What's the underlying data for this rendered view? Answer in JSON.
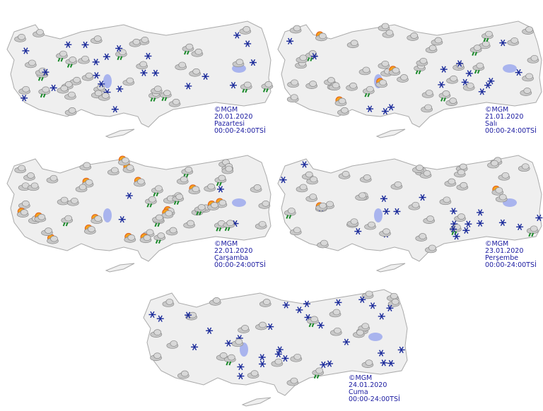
{
  "maps": [
    {
      "copyright": "©MGM",
      "date": "20.01.2020",
      "day": "Pazartesi",
      "time": "00:00-24:00TSİ"
    },
    {
      "copyright": "©MGM",
      "date": "21.01.2020",
      "day": "Salı",
      "time": "00:00-24:00TSİ"
    },
    {
      "copyright": "©MGM",
      "date": "22.01.2020",
      "day": "Çarşamba",
      "time": "00:00-24:00TSİ"
    },
    {
      "copyright": "©MGM",
      "date": "23.01.2020",
      "day": "Perşembe",
      "time": "00:00-24:00TSİ"
    },
    {
      "copyright": "©MGM",
      "date": "24.01.2020",
      "day": "Cuma",
      "time": "00:00-24:00TSİ"
    }
  ]
}
